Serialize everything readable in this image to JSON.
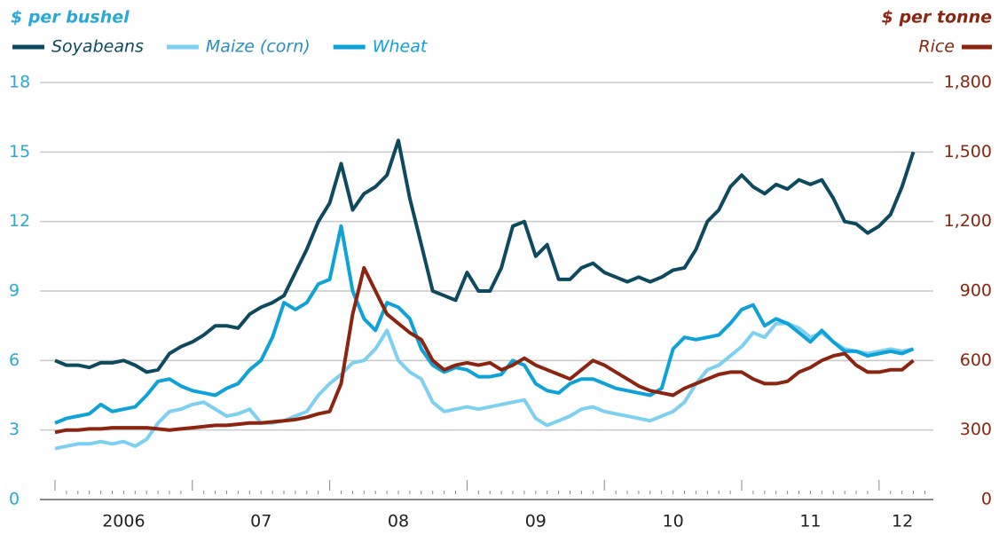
{
  "chart_data": {
    "type": "line",
    "y_label": "$ per bushel",
    "y2_label": "$ per tonne",
    "x": [
      2006.0,
      2006.083,
      2006.167,
      2006.25,
      2006.333,
      2006.417,
      2006.5,
      2006.583,
      2006.667,
      2006.75,
      2006.833,
      2006.917,
      2007.0,
      2007.083,
      2007.167,
      2007.25,
      2007.333,
      2007.417,
      2007.5,
      2007.583,
      2007.667,
      2007.75,
      2007.833,
      2007.917,
      2008.0,
      2008.083,
      2008.167,
      2008.25,
      2008.333,
      2008.417,
      2008.5,
      2008.583,
      2008.667,
      2008.75,
      2008.833,
      2008.917,
      2009.0,
      2009.083,
      2009.167,
      2009.25,
      2009.333,
      2009.417,
      2009.5,
      2009.583,
      2009.667,
      2009.75,
      2009.833,
      2009.917,
      2010.0,
      2010.083,
      2010.167,
      2010.25,
      2010.333,
      2010.417,
      2010.5,
      2010.583,
      2010.667,
      2010.75,
      2010.833,
      2010.917,
      2011.0,
      2011.083,
      2011.167,
      2011.25,
      2011.333,
      2011.417,
      2011.5,
      2011.583,
      2011.667,
      2011.75,
      2011.833,
      2011.917,
      2012.0,
      2012.083,
      2012.167,
      2012.25
    ],
    "series": [
      {
        "name": "Soyabeans",
        "color": "#0e4a5f",
        "values": [
          6.0,
          5.8,
          5.8,
          5.7,
          5.9,
          5.9,
          6.0,
          5.8,
          5.5,
          5.6,
          6.3,
          6.6,
          6.8,
          7.1,
          7.5,
          7.5,
          7.4,
          8.0,
          8.3,
          8.5,
          8.8,
          9.8,
          10.8,
          12.0,
          12.8,
          14.5,
          12.5,
          13.2,
          13.5,
          14.0,
          15.5,
          13.0,
          11.0,
          9.0,
          8.8,
          8.6,
          9.8,
          9.0,
          9.0,
          10.0,
          11.8,
          12.0,
          10.5,
          11.0,
          9.5,
          9.5,
          10.0,
          10.2,
          9.8,
          9.6,
          9.4,
          9.6,
          9.4,
          9.6,
          9.9,
          10.0,
          10.8,
          12.0,
          12.5,
          13.5,
          14.0,
          13.5,
          13.2,
          13.6,
          13.4,
          13.8,
          13.6,
          13.8,
          13.0,
          12.0,
          11.9,
          11.5,
          11.8,
          12.3,
          13.5,
          15.0
        ]
      },
      {
        "name": "Maize (corn)",
        "color": "#7dd0f0",
        "values": [
          2.2,
          2.3,
          2.4,
          2.4,
          2.5,
          2.4,
          2.5,
          2.3,
          2.6,
          3.3,
          3.8,
          3.9,
          4.1,
          4.2,
          3.9,
          3.6,
          3.7,
          3.9,
          3.3,
          3.3,
          3.4,
          3.6,
          3.8,
          4.5,
          5.0,
          5.4,
          5.9,
          6.0,
          6.5,
          7.3,
          6.0,
          5.5,
          5.2,
          4.2,
          3.8,
          3.9,
          4.0,
          3.9,
          4.0,
          4.1,
          4.2,
          4.3,
          3.5,
          3.2,
          3.4,
          3.6,
          3.9,
          4.0,
          3.8,
          3.7,
          3.6,
          3.5,
          3.4,
          3.6,
          3.8,
          4.2,
          5.0,
          5.6,
          5.8,
          6.2,
          6.6,
          7.2,
          7.0,
          7.6,
          7.6,
          7.4,
          7.0,
          7.2,
          6.8,
          6.5,
          6.4,
          6.3,
          6.4,
          6.5,
          6.4,
          6.5
        ]
      },
      {
        "name": "Wheat",
        "color": "#0ea2d8",
        "values": [
          3.3,
          3.5,
          3.6,
          3.7,
          4.1,
          3.8,
          3.9,
          4.0,
          4.5,
          5.1,
          5.2,
          4.9,
          4.7,
          4.6,
          4.5,
          4.8,
          5.0,
          5.6,
          6.0,
          7.0,
          8.5,
          8.2,
          8.5,
          9.3,
          9.5,
          11.8,
          9.0,
          7.8,
          7.3,
          8.5,
          8.3,
          7.8,
          6.5,
          5.8,
          5.5,
          5.7,
          5.6,
          5.3,
          5.3,
          5.4,
          6.0,
          5.8,
          5.0,
          4.7,
          4.6,
          5.0,
          5.2,
          5.2,
          5.0,
          4.8,
          4.7,
          4.6,
          4.5,
          4.8,
          6.5,
          7.0,
          6.9,
          7.0,
          7.1,
          7.6,
          8.2,
          8.4,
          7.5,
          7.8,
          7.6,
          7.2,
          6.8,
          7.3,
          6.8,
          6.4,
          6.4,
          6.2,
          6.3,
          6.4,
          6.3,
          6.5
        ]
      },
      {
        "name": "Rice",
        "color": "#8b2510",
        "axis": "y2",
        "values": [
          290,
          300,
          300,
          305,
          305,
          310,
          310,
          310,
          310,
          305,
          300,
          305,
          310,
          315,
          320,
          320,
          325,
          330,
          330,
          335,
          340,
          345,
          355,
          370,
          380,
          500,
          800,
          1000,
          900,
          800,
          760,
          720,
          690,
          600,
          560,
          580,
          590,
          580,
          590,
          560,
          580,
          610,
          580,
          560,
          540,
          520,
          560,
          600,
          580,
          550,
          520,
          490,
          470,
          460,
          450,
          480,
          500,
          520,
          540,
          550,
          550,
          520,
          500,
          500,
          510,
          550,
          570,
          600,
          620,
          630,
          580,
          550,
          550,
          560,
          560,
          600
        ]
      }
    ],
    "xlim": [
      2006,
      2012.35
    ],
    "xticks": [
      {
        "value": 2006.5,
        "label": "2006"
      },
      {
        "value": 2007.5,
        "label": "07"
      },
      {
        "value": 2008.5,
        "label": "08"
      },
      {
        "value": 2009.5,
        "label": "09"
      },
      {
        "value": 2010.5,
        "label": "10"
      },
      {
        "value": 2011.5,
        "label": "11"
      },
      {
        "value": 2012.17,
        "label": "12"
      }
    ],
    "ylim": [
      0,
      18
    ],
    "yticks": [
      0,
      3,
      6,
      9,
      12,
      15,
      18
    ],
    "y2lim": [
      0,
      1800
    ],
    "y2ticks": [
      0,
      {
        "value": 300,
        "label": "300"
      },
      {
        "value": 600,
        "label": "600"
      },
      {
        "value": 900,
        "label": "900"
      },
      {
        "value": 1200,
        "label": "1,200"
      },
      {
        "value": 1500,
        "label": "1,500"
      },
      {
        "value": 1800,
        "label": "1,800"
      }
    ],
    "grid": true
  }
}
